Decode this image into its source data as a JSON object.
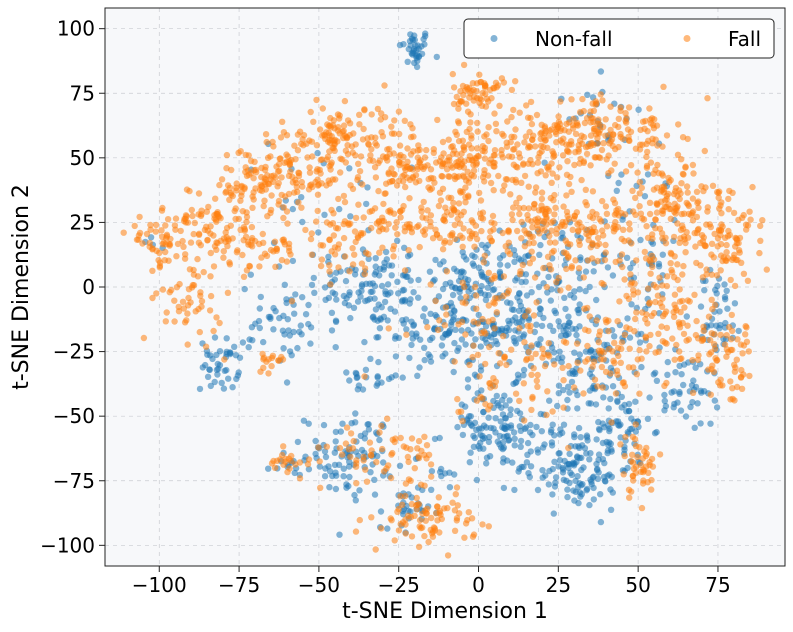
{
  "chart_data": {
    "type": "scatter",
    "title": "",
    "xlabel": "t-SNE Dimension 1",
    "ylabel": "t-SNE Dimension 2",
    "xlim": [
      -117,
      96
    ],
    "ylim": [
      -108,
      108
    ],
    "xticks": [
      -100,
      -75,
      -50,
      -25,
      0,
      25,
      50,
      75
    ],
    "yticks": [
      -100,
      -75,
      -50,
      -25,
      0,
      25,
      50,
      75,
      100
    ],
    "xtick_labels": [
      "−100",
      "−75",
      "−50",
      "−25",
      "0",
      "25",
      "50",
      "75"
    ],
    "ytick_labels": [
      "−100",
      "−75",
      "−50",
      "−25",
      "0",
      "25",
      "50",
      "75",
      "100"
    ],
    "grid": true,
    "legend_position": "top-right",
    "series": [
      {
        "name": "Non-fall",
        "color": "#1f77b4",
        "clusters": [
          {
            "x": -20,
            "y": 92,
            "sx": 2.5,
            "sy": 4,
            "n": 35
          },
          {
            "x": -100,
            "y": 20,
            "sx": 3,
            "sy": 3,
            "n": 4
          },
          {
            "x": -35,
            "y": 1,
            "sx": 9,
            "sy": 8,
            "n": 90
          },
          {
            "x": -10,
            "y": -15,
            "sx": 14,
            "sy": 10,
            "n": 130
          },
          {
            "x": 15,
            "y": -15,
            "sx": 14,
            "sy": 10,
            "n": 130
          },
          {
            "x": 35,
            "y": -30,
            "sx": 10,
            "sy": 10,
            "n": 90
          },
          {
            "x": -60,
            "y": -15,
            "sx": 8,
            "sy": 8,
            "n": 50
          },
          {
            "x": -81,
            "y": -30,
            "sx": 3,
            "sy": 5,
            "n": 40
          },
          {
            "x": -40,
            "y": -65,
            "sx": 7,
            "sy": 8,
            "n": 90
          },
          {
            "x": -23,
            "y": -88,
            "sx": 4,
            "sy": 6,
            "n": 30
          },
          {
            "x": -11,
            "y": -73,
            "sx": 1.5,
            "sy": 1.5,
            "n": 5
          },
          {
            "x": 5,
            "y": -55,
            "sx": 8,
            "sy": 8,
            "n": 120
          },
          {
            "x": 30,
            "y": -70,
            "sx": 9,
            "sy": 8,
            "n": 130
          },
          {
            "x": 42,
            "y": -55,
            "sx": 6,
            "sy": 7,
            "n": 60
          },
          {
            "x": 65,
            "y": -40,
            "sx": 7,
            "sy": 8,
            "n": 50
          },
          {
            "x": 75,
            "y": -10,
            "sx": 4,
            "sy": 8,
            "n": 40
          },
          {
            "x": 20,
            "y": 10,
            "sx": 12,
            "sy": 9,
            "n": 70
          },
          {
            "x": 50,
            "y": 10,
            "sx": 8,
            "sy": 8,
            "n": 40
          },
          {
            "x": -5,
            "y": 5,
            "sx": 10,
            "sy": 8,
            "n": 60
          },
          {
            "x": 40,
            "y": 65,
            "sx": 6,
            "sy": 8,
            "n": 25
          },
          {
            "x": 50,
            "y": 40,
            "sx": 6,
            "sy": 6,
            "n": 15
          },
          {
            "x": -50,
            "y": 30,
            "sx": 15,
            "sy": 12,
            "n": 25
          },
          {
            "x": -35,
            "y": -35,
            "sx": 5,
            "sy": 3,
            "n": 20
          },
          {
            "x": -60,
            "y": -68,
            "sx": 3,
            "sy": 2,
            "n": 10
          }
        ]
      },
      {
        "name": "Fall",
        "color": "#ff7f0e",
        "clusters": [
          {
            "x": -100,
            "y": 18,
            "sx": 5,
            "sy": 5,
            "n": 50
          },
          {
            "x": -85,
            "y": 25,
            "sx": 5,
            "sy": 8,
            "n": 60
          },
          {
            "x": -90,
            "y": -5,
            "sx": 5,
            "sy": 8,
            "n": 50
          },
          {
            "x": -70,
            "y": 40,
            "sx": 6,
            "sy": 8,
            "n": 80
          },
          {
            "x": -55,
            "y": 45,
            "sx": 7,
            "sy": 8,
            "n": 100
          },
          {
            "x": -45,
            "y": 60,
            "sx": 5,
            "sy": 5,
            "n": 60
          },
          {
            "x": -30,
            "y": 55,
            "sx": 6,
            "sy": 8,
            "n": 70
          },
          {
            "x": -15,
            "y": 45,
            "sx": 8,
            "sy": 6,
            "n": 70
          },
          {
            "x": 0,
            "y": 75,
            "sx": 4,
            "sy": 4,
            "n": 60
          },
          {
            "x": 0,
            "y": 50,
            "sx": 10,
            "sy": 8,
            "n": 120
          },
          {
            "x": 20,
            "y": 55,
            "sx": 8,
            "sy": 7,
            "n": 100
          },
          {
            "x": 35,
            "y": 60,
            "sx": 6,
            "sy": 8,
            "n": 80
          },
          {
            "x": 50,
            "y": 60,
            "sx": 6,
            "sy": 6,
            "n": 60
          },
          {
            "x": 60,
            "y": 35,
            "sx": 8,
            "sy": 8,
            "n": 90
          },
          {
            "x": 70,
            "y": 20,
            "sx": 8,
            "sy": 10,
            "n": 90
          },
          {
            "x": 80,
            "y": 15,
            "sx": 5,
            "sy": 6,
            "n": 40
          },
          {
            "x": 40,
            "y": 25,
            "sx": 8,
            "sy": 6,
            "n": 70
          },
          {
            "x": 20,
            "y": 25,
            "sx": 10,
            "sy": 6,
            "n": 80
          },
          {
            "x": -5,
            "y": 25,
            "sx": 12,
            "sy": 6,
            "n": 90
          },
          {
            "x": -30,
            "y": 25,
            "sx": 8,
            "sy": 6,
            "n": 60
          },
          {
            "x": -45,
            "y": 15,
            "sx": 6,
            "sy": 5,
            "n": 40
          },
          {
            "x": -70,
            "y": 15,
            "sx": 7,
            "sy": 6,
            "n": 60
          },
          {
            "x": 55,
            "y": -5,
            "sx": 7,
            "sy": 8,
            "n": 60
          },
          {
            "x": 65,
            "y": -20,
            "sx": 6,
            "sy": 8,
            "n": 50
          },
          {
            "x": 80,
            "y": -30,
            "sx": 4,
            "sy": 8,
            "n": 50
          },
          {
            "x": 40,
            "y": -25,
            "sx": 8,
            "sy": 8,
            "n": 60
          },
          {
            "x": 50,
            "y": -70,
            "sx": 3,
            "sy": 6,
            "n": 45
          },
          {
            "x": -15,
            "y": -90,
            "sx": 7,
            "sy": 5,
            "n": 80
          },
          {
            "x": -20,
            "y": -65,
            "sx": 3,
            "sy": 5,
            "n": 25
          },
          {
            "x": -60,
            "y": -67,
            "sx": 4,
            "sy": 2,
            "n": 20
          },
          {
            "x": -65,
            "y": -30,
            "sx": 3,
            "sy": 3,
            "n": 15
          },
          {
            "x": -35,
            "y": -65,
            "sx": 6,
            "sy": 8,
            "n": 40
          },
          {
            "x": 0,
            "y": -10,
            "sx": 15,
            "sy": 10,
            "n": 70
          },
          {
            "x": 20,
            "y": -30,
            "sx": 12,
            "sy": 10,
            "n": 40
          },
          {
            "x": 30,
            "y": 10,
            "sx": 12,
            "sy": 8,
            "n": 50
          },
          {
            "x": 5,
            "y": -45,
            "sx": 8,
            "sy": 4,
            "n": 20
          }
        ]
      }
    ]
  },
  "legend": {
    "items": [
      {
        "label": "Non-fall",
        "color": "#1f77b4"
      },
      {
        "label": "Fall",
        "color": "#ff7f0e"
      }
    ]
  }
}
